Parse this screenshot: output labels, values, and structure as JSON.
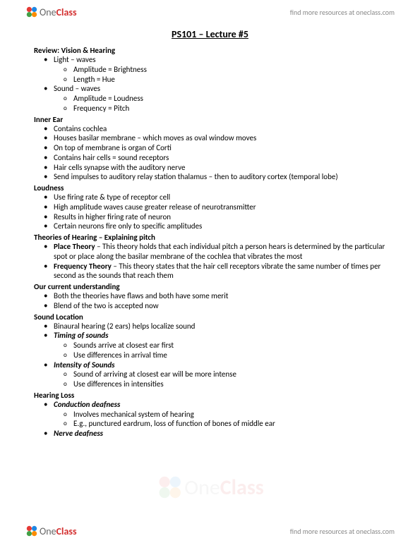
{
  "brand": {
    "name_part1": "One",
    "name_part2": "Class",
    "link_text": "find more resources at oneclass.com",
    "icon_colors": {
      "red": "#e53935",
      "blue": "#1e88e5",
      "green": "#43a047",
      "orange": "#fb8c00"
    }
  },
  "doc": {
    "title": "PS101 – Lecture #5",
    "sections": [
      {
        "heading": "Review: Vision & Hearing",
        "items": [
          {
            "text": "Light – waves",
            "sub": [
              "Amplitude = Brightness",
              "Length = Hue"
            ]
          },
          {
            "text": "Sound – waves",
            "sub": [
              "Amplitude = Loudness",
              "Frequency = Pitch"
            ]
          }
        ]
      },
      {
        "heading": "Inner Ear",
        "items": [
          {
            "text": "Contains cochlea"
          },
          {
            "text": "Houses basilar membrane – which moves as oval window moves"
          },
          {
            "text": "On top of membrane is organ of Corti"
          },
          {
            "text": "Contains hair cells = sound receptors"
          },
          {
            "text": "Hair cells synapse with the auditory nerve"
          },
          {
            "text": "Send impulses to auditory relay station thalamus – then to auditory cortex (temporal lobe)"
          }
        ]
      },
      {
        "heading": "Loudness",
        "items": [
          {
            "text": "Use firing rate & type of receptor cell"
          },
          {
            "text": "High amplitude waves cause greater release of neurotransmitter"
          },
          {
            "text": "Results in higher firing rate of neuron"
          },
          {
            "text": "Certain neurons fire only to specific amplitudes"
          }
        ]
      },
      {
        "heading": "Theories of Hearing – Explaining pitch",
        "items": [
          {
            "lead": "Place Theory",
            "rest": " – This theory holds that each individual pitch a person hears is determined by the particular spot or place along the basilar membrane of the cochlea that vibrates the most"
          },
          {
            "lead": "Frequency Theory",
            "rest": " – This theory states that the hair cell receptors vibrate the same number of times per second as the sounds that reach them"
          }
        ]
      },
      {
        "heading": "Our current understanding",
        "items": [
          {
            "text": "Both the theories have flaws and both have some merit"
          },
          {
            "text": "Blend of the two is accepted now"
          }
        ]
      },
      {
        "heading": "Sound Location",
        "items": [
          {
            "text": "Binaural hearing (2 ears) helps localize sound"
          },
          {
            "italic_lead": "Timing of sounds",
            "sub": [
              "Sounds arrive at closest ear first",
              "Use differences in arrival time"
            ]
          },
          {
            "italic_lead": "Intensity of Sounds",
            "sub": [
              "Sound of arriving at closest ear will be more intense",
              "Use differences in intensities"
            ]
          }
        ]
      },
      {
        "heading": "Hearing Loss",
        "items": [
          {
            "italic_lead": "Conduction deafness",
            "sub": [
              "Involves mechanical system of hearing",
              "E.g., punctured eardrum, loss of function of bones of middle ear"
            ]
          },
          {
            "italic_lead": "Nerve deafness"
          }
        ]
      }
    ]
  }
}
